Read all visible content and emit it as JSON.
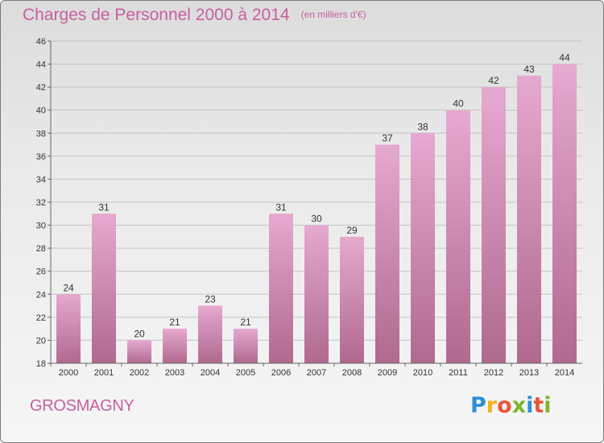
{
  "header": {
    "title": "Charges de Personnel 2000 à 2014",
    "unit": "(en milliers d'€)"
  },
  "commune": "GROSMAGNY",
  "logo": {
    "letters": [
      {
        "char": "P",
        "color": "#2e8fd6"
      },
      {
        "char": "r",
        "color": "#f2b21a"
      },
      {
        "char": "o",
        "color": "#e8563a"
      },
      {
        "char": "x",
        "color": "#7ab62f"
      },
      {
        "char": "i",
        "color": "#2e8fd6"
      },
      {
        "char": "t",
        "color": "#e8563a"
      },
      {
        "char": "i",
        "color": "#7ab62f"
      }
    ]
  },
  "colors": {
    "title": "#c8609d",
    "bar_top": "#e6a9cf",
    "bar_bottom": "#b0698f"
  },
  "chart_data": {
    "type": "bar",
    "categories": [
      "2000",
      "2001",
      "2002",
      "2003",
      "2004",
      "2005",
      "2006",
      "2007",
      "2008",
      "2009",
      "2010",
      "2011",
      "2012",
      "2013",
      "2014"
    ],
    "values": [
      24,
      31,
      20,
      21,
      23,
      21,
      31,
      30,
      29,
      37,
      38,
      40,
      42,
      43,
      44
    ],
    "title": "Charges de Personnel 2000 à 2014",
    "ylim": [
      18,
      46
    ],
    "yticks": [
      18,
      20,
      22,
      24,
      26,
      28,
      30,
      32,
      34,
      36,
      38,
      40,
      42,
      44,
      46
    ],
    "grid": true
  }
}
